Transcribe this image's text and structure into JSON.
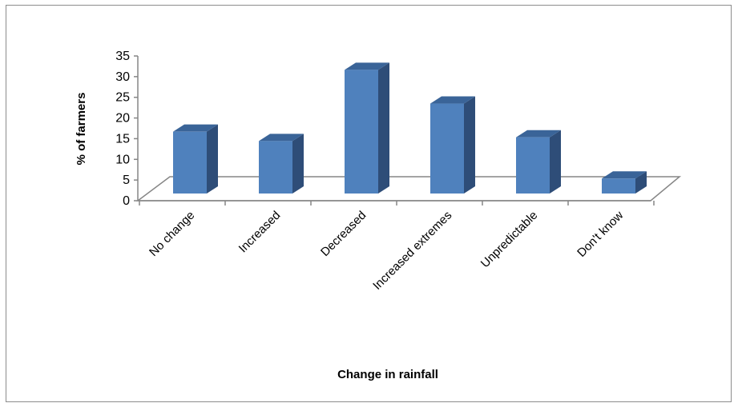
{
  "chart_data": {
    "type": "bar",
    "style": "3d-column",
    "title": "",
    "xlabel": "Change in rainfall",
    "ylabel": "% of farmers",
    "categories": [
      "No change",
      "Increased",
      "Decreased",
      "Increased extremes",
      "Unpredictable",
      "Don't know"
    ],
    "values": [
      16.5,
      14,
      33,
      24,
      15,
      4
    ],
    "ylim": [
      0,
      35
    ],
    "yticks": [
      "0",
      "5",
      "10",
      "15",
      "20",
      "25",
      "30",
      "35"
    ],
    "grid": false,
    "legend": "none",
    "colors": {
      "bar_front": "#4F81BD",
      "bar_side": "#2E4D78",
      "bar_top": "#3A6498",
      "axis": "#868686",
      "border": "#8c8c8c"
    }
  }
}
